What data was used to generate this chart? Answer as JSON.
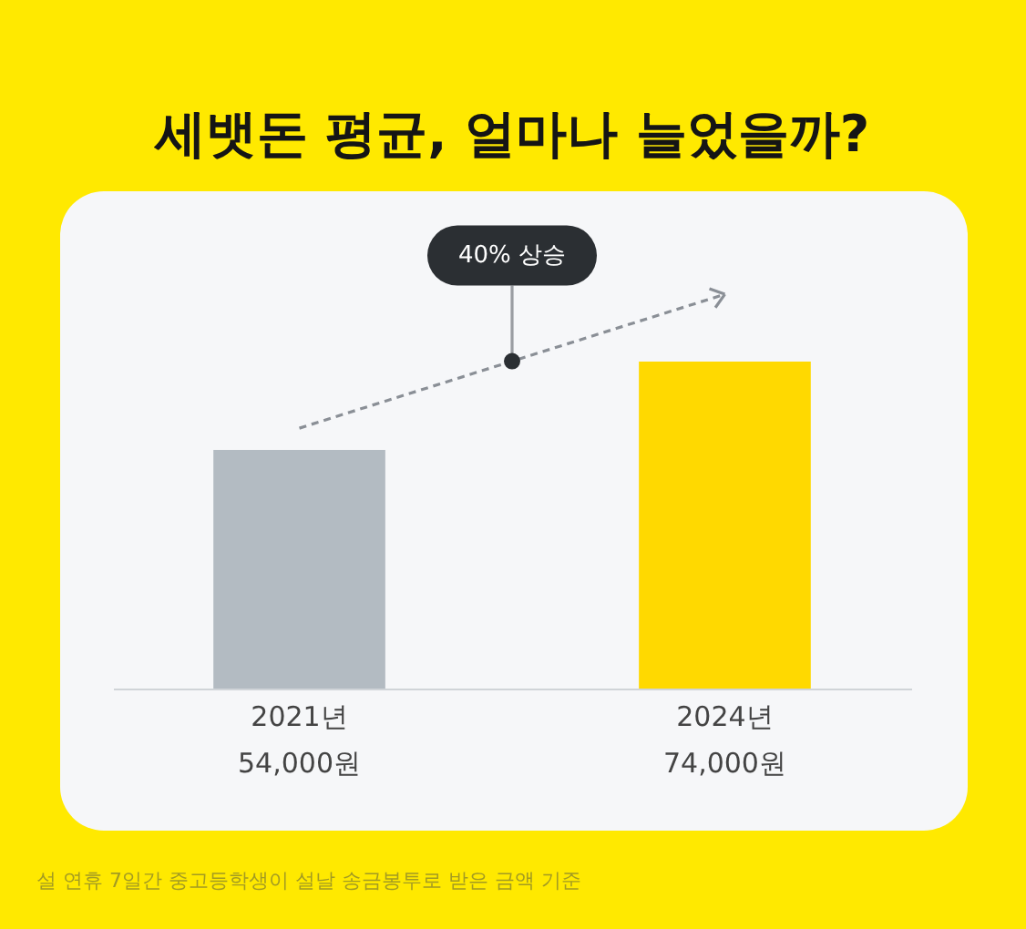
{
  "chart_data": {
    "type": "bar",
    "title": "세뱃돈 평균, 얼마나 늘었을까?",
    "categories": [
      "2021년",
      "2024년"
    ],
    "values": [
      54000,
      74000
    ],
    "colors": [
      "#b3bbc2",
      "#ffd900"
    ],
    "value_labels": [
      "54,000원",
      "74,000원"
    ],
    "annotations": [
      "40% 상승",
      "설 연휴 7일간 중고등학생이 설날 송금봉투로 받은 금액 기준"
    ]
  }
}
